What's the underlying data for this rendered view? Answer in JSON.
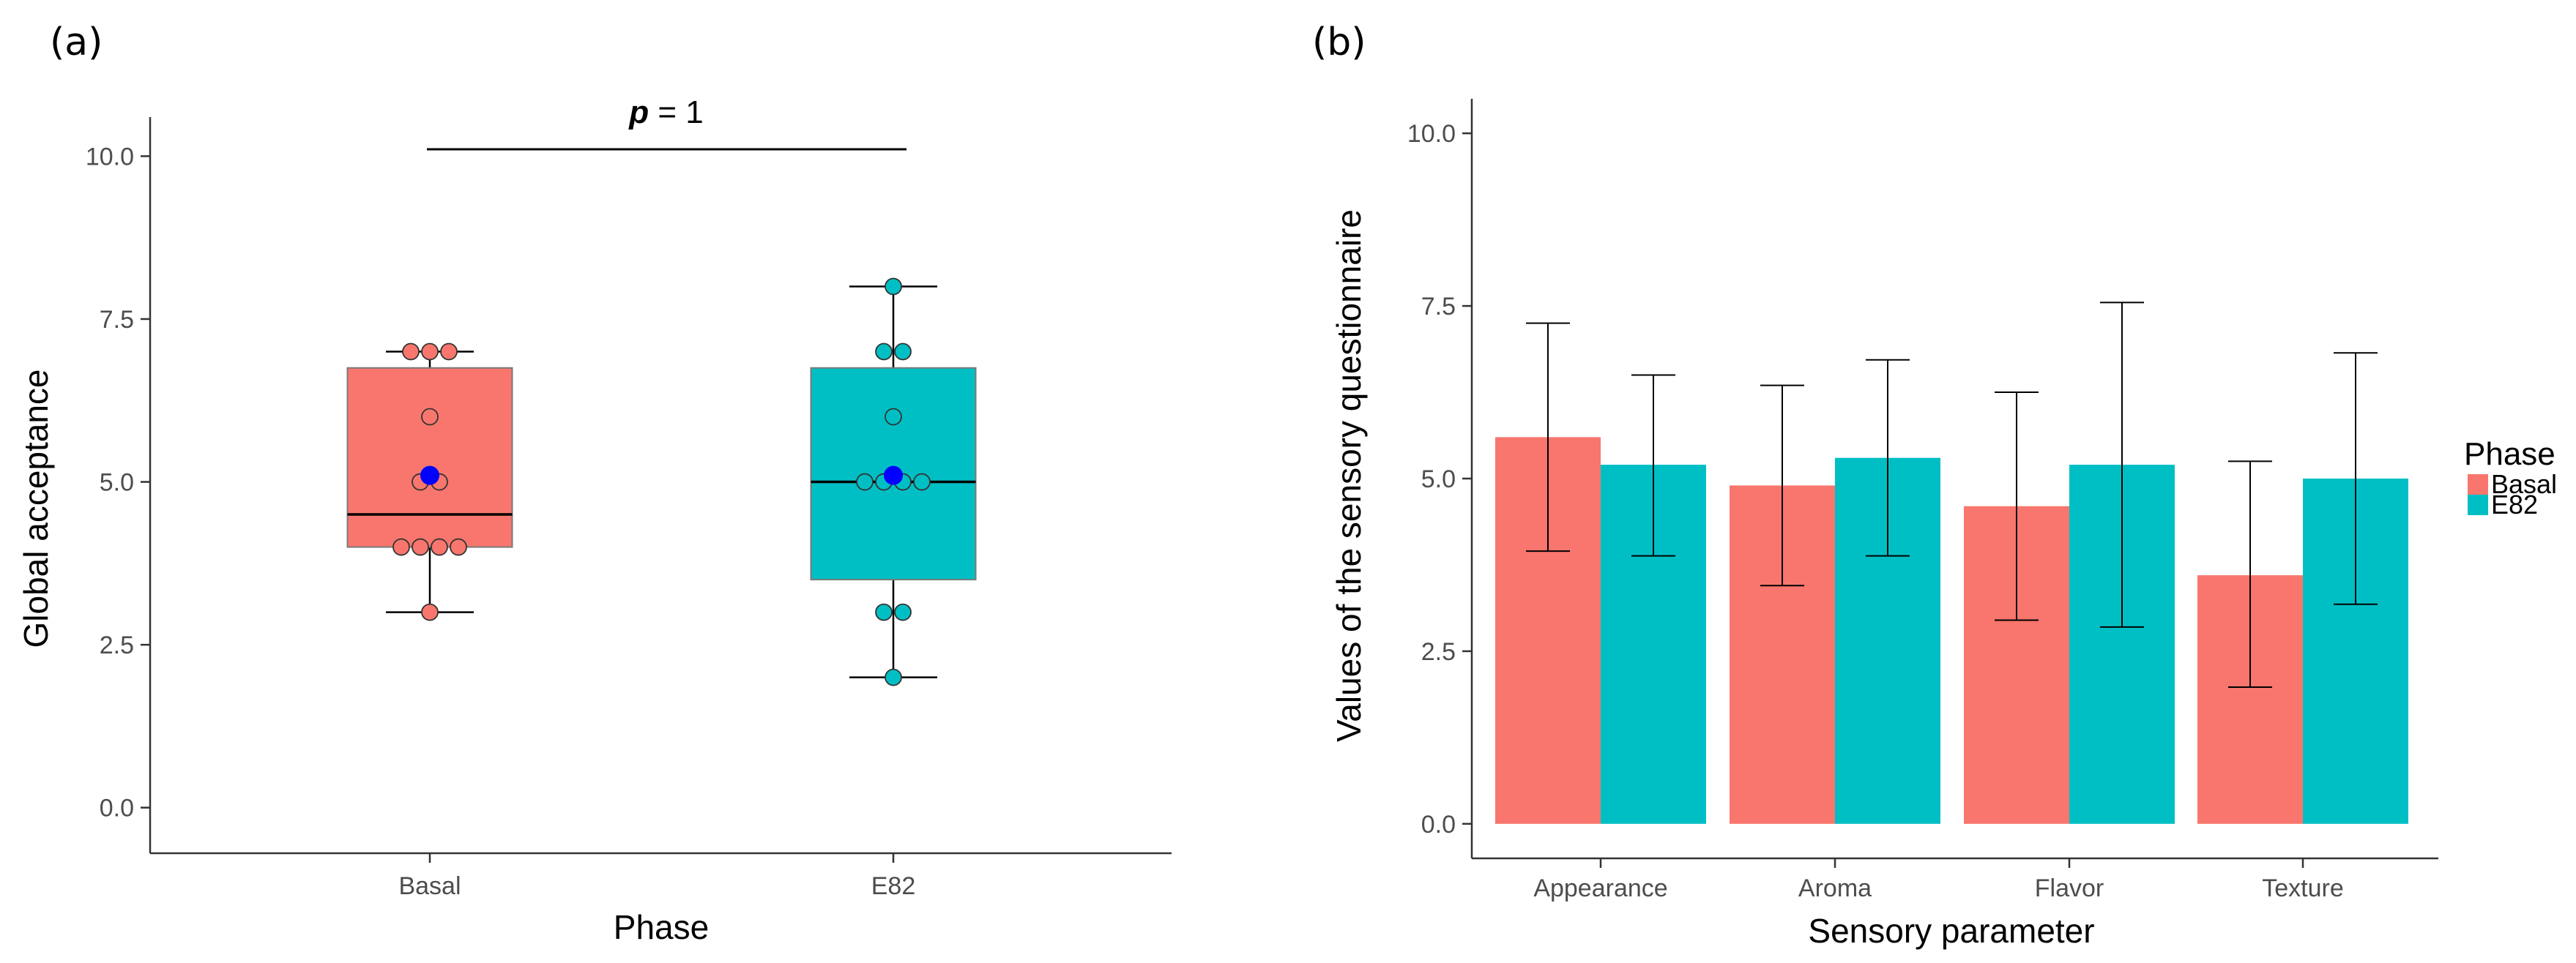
{
  "colors": {
    "basal": "#F8766D",
    "e82": "#00BFC4",
    "mean": "#0000FF"
  },
  "chart_data": [
    {
      "panel_label": "(a)",
      "type": "box",
      "xlabel": "Phase",
      "ylabel": "Global acceptance",
      "ylim": [
        -0.7,
        10.6
      ],
      "yticks": [
        0.0,
        2.5,
        5.0,
        7.5,
        10.0
      ],
      "ytick_labels": [
        "0.0",
        "2.5",
        "5.0",
        "7.5",
        "10.0"
      ],
      "categories": [
        "Basal",
        "E82"
      ],
      "boxes": [
        {
          "name": "Basal",
          "min": 3.0,
          "q1": 4.0,
          "median": 4.5,
          "q3": 6.75,
          "max": 7.0,
          "mean": 5.1,
          "points": [
            3,
            4,
            4,
            4,
            4,
            5,
            5,
            6,
            7,
            7,
            7
          ]
        },
        {
          "name": "E82",
          "min": 2.0,
          "q1": 3.5,
          "median": 5.0,
          "q3": 6.75,
          "max": 8.0,
          "mean": 5.1,
          "points": [
            2,
            3,
            3,
            5,
            5,
            5,
            5,
            6,
            7,
            7,
            8
          ]
        }
      ],
      "annotation": {
        "p_symbol": "p",
        "p_rest": " = 1"
      }
    },
    {
      "panel_label": "(b)",
      "type": "bar",
      "xlabel": "Sensory parameter",
      "ylabel": "Values of the sensory questionnaire",
      "ylim": [
        -0.5,
        10.5
      ],
      "yticks": [
        0.0,
        2.5,
        5.0,
        7.5,
        10.0
      ],
      "ytick_labels": [
        "0.0",
        "2.5",
        "5.0",
        "7.5",
        "10.0"
      ],
      "categories": [
        "Appearance",
        "Aroma",
        "Flavor",
        "Texture"
      ],
      "legend": {
        "title": "Phase",
        "position": "right"
      },
      "series": [
        {
          "name": "Basal",
          "values": [
            5.6,
            4.9,
            4.6,
            3.6
          ],
          "err_low": [
            3.95,
            3.45,
            2.95,
            1.98
          ],
          "err_high": [
            7.25,
            6.35,
            6.25,
            5.25
          ]
        },
        {
          "name": "E82",
          "values": [
            5.2,
            5.3,
            5.2,
            5.0
          ],
          "err_low": [
            3.88,
            3.88,
            2.85,
            3.18
          ],
          "err_high": [
            6.5,
            6.72,
            7.55,
            6.82
          ]
        }
      ]
    }
  ]
}
